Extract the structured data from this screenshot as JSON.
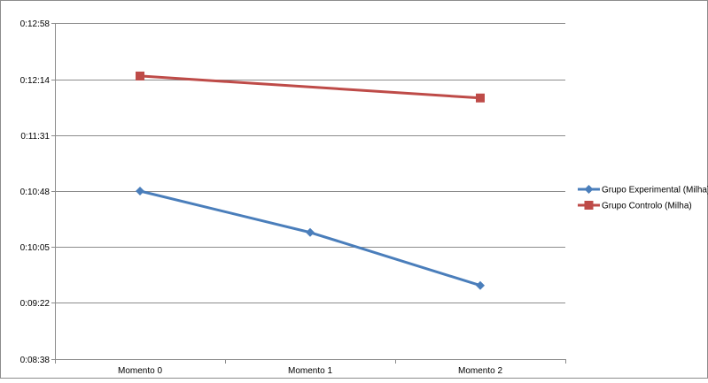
{
  "chart_data": {
    "type": "line",
    "categories": [
      "Momento 0",
      "Momento 1",
      "Momento 2"
    ],
    "y_ticks": [
      "0:08:38",
      "0:09:22",
      "0:10:05",
      "0:10:48",
      "0:11:31",
      "0:12:14",
      "0:12:58"
    ],
    "y_tick_seconds": [
      518,
      562,
      605,
      648,
      691,
      734,
      778
    ],
    "ylim_seconds": [
      518,
      778
    ],
    "grid": true,
    "legend_position": "right",
    "series": [
      {
        "name": "Grupo Experimental (Milha)",
        "color": "#4a7ebb",
        "marker": "diamond",
        "values_seconds": [
          648,
          616,
          575
        ],
        "values": [
          "0:10:48",
          "0:10:16",
          "0:09:35"
        ]
      },
      {
        "name": "Grupo Controlo (Milha)",
        "color": "#be4b48",
        "marker": "square",
        "values_seconds": [
          737,
          null,
          720
        ],
        "values": [
          "0:12:17",
          "",
          "0:12:00"
        ]
      }
    ]
  }
}
